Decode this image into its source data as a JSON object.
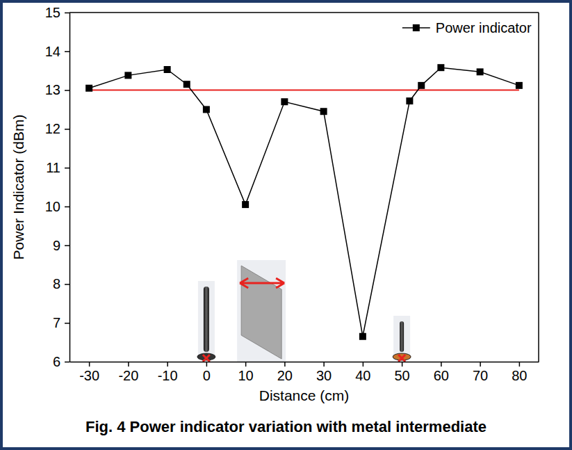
{
  "chart_data": {
    "type": "line",
    "caption": "Fig. 4 Power indicator variation with metal intermediate",
    "x_label": "Distance (cm)",
    "y_label": "Power Indicator (dBm)",
    "x": [
      -30,
      -20,
      -10,
      -5,
      0,
      10,
      20,
      30,
      40,
      52,
      55,
      60,
      70,
      80
    ],
    "series": [
      {
        "name": "Power indicator",
        "color": "#000000",
        "marker": "square",
        "line_style": "solid",
        "values": [
          13.05,
          13.38,
          13.53,
          13.15,
          12.5,
          10.05,
          12.7,
          12.45,
          6.65,
          12.72,
          13.12,
          13.58,
          13.47,
          13.12
        ]
      }
    ],
    "reference_line": {
      "y": 13,
      "x": [
        -30,
        80
      ],
      "color": "#e8231f"
    },
    "xlim": [
      -35,
      85
    ],
    "xticks": [
      -30,
      -20,
      -10,
      0,
      10,
      20,
      30,
      40,
      50,
      60,
      70,
      80
    ],
    "ylim": [
      6,
      15
    ],
    "yticks": [
      6,
      7,
      8,
      9,
      10,
      11,
      12,
      13,
      14,
      15
    ],
    "legend": "top-right",
    "grid": false
  }
}
